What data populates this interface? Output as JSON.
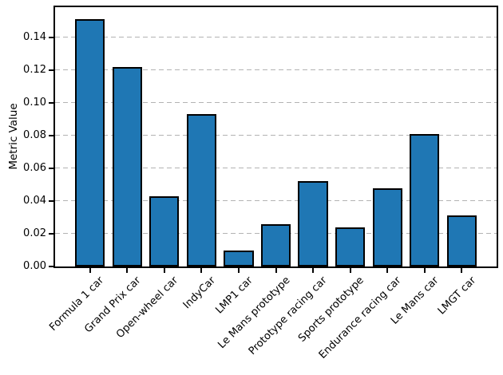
{
  "figure": {
    "background": "#ffffff"
  },
  "chart_data": {
    "type": "bar",
    "title": "",
    "xlabel": "",
    "ylabel": "Metric Value",
    "categories": [
      "Formula 1 car",
      "Grand Prix car",
      "Open-wheel car",
      "IndyCar",
      "LMP1 car",
      "Le Mans prototype",
      "Prototype racing car",
      "Sports prototype",
      "Endurance racing car",
      "Le Mans car",
      "LMGT car"
    ],
    "values": [
      0.151,
      0.122,
      0.043,
      0.093,
      0.01,
      0.026,
      0.052,
      0.024,
      0.048,
      0.081,
      0.031
    ],
    "ylim": [
      0,
      0.1585
    ],
    "yticks": [
      0,
      0.02,
      0.04,
      0.06,
      0.08,
      0.1,
      0.12,
      0.14
    ],
    "ytick_labels": [
      "0.00",
      "0.02",
      "0.04",
      "0.06",
      "0.08",
      "0.10",
      "0.12",
      "0.14"
    ],
    "xtick_rotation": 45,
    "grid": {
      "axis": "y",
      "style": "dashed",
      "color": "#b3b3b3"
    },
    "legend": "none",
    "bar_color": "#1f77b4",
    "bar_edge_color": "#000000"
  }
}
